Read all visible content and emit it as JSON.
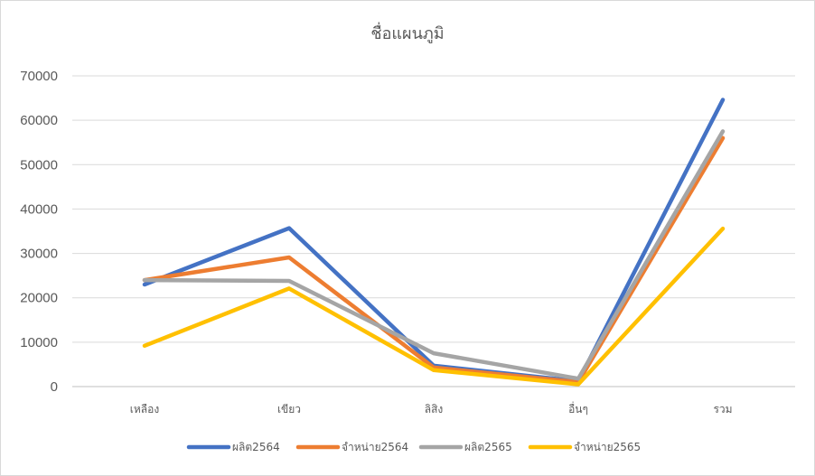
{
  "chart_data": {
    "type": "line",
    "title": "ชื่อแผนภูมิ",
    "xlabel": "",
    "ylabel": "",
    "categories": [
      "เหลือง",
      "เขียว",
      "ลิสิง",
      "อื่นๆ",
      "รวม"
    ],
    "ylim": [
      0,
      70000
    ],
    "yticks": [
      0,
      10000,
      20000,
      30000,
      40000,
      50000,
      60000,
      70000
    ],
    "grid": true,
    "legend": "bottom",
    "series": [
      {
        "name": "ผลิต2564",
        "color": "#4472C4",
        "values": [
          23000,
          35700,
          4700,
          1200,
          64600
        ]
      },
      {
        "name": "จำหน่าย2564",
        "color": "#ED7D31",
        "values": [
          24000,
          29100,
          4300,
          1000,
          56000
        ]
      },
      {
        "name": "ผลิต2565",
        "color": "#A5A5A5",
        "values": [
          24000,
          23800,
          7500,
          1800,
          57500
        ]
      },
      {
        "name": "จำหน่าย2565",
        "color": "#FFC000",
        "values": [
          9200,
          22100,
          3700,
          500,
          35600
        ]
      }
    ]
  }
}
